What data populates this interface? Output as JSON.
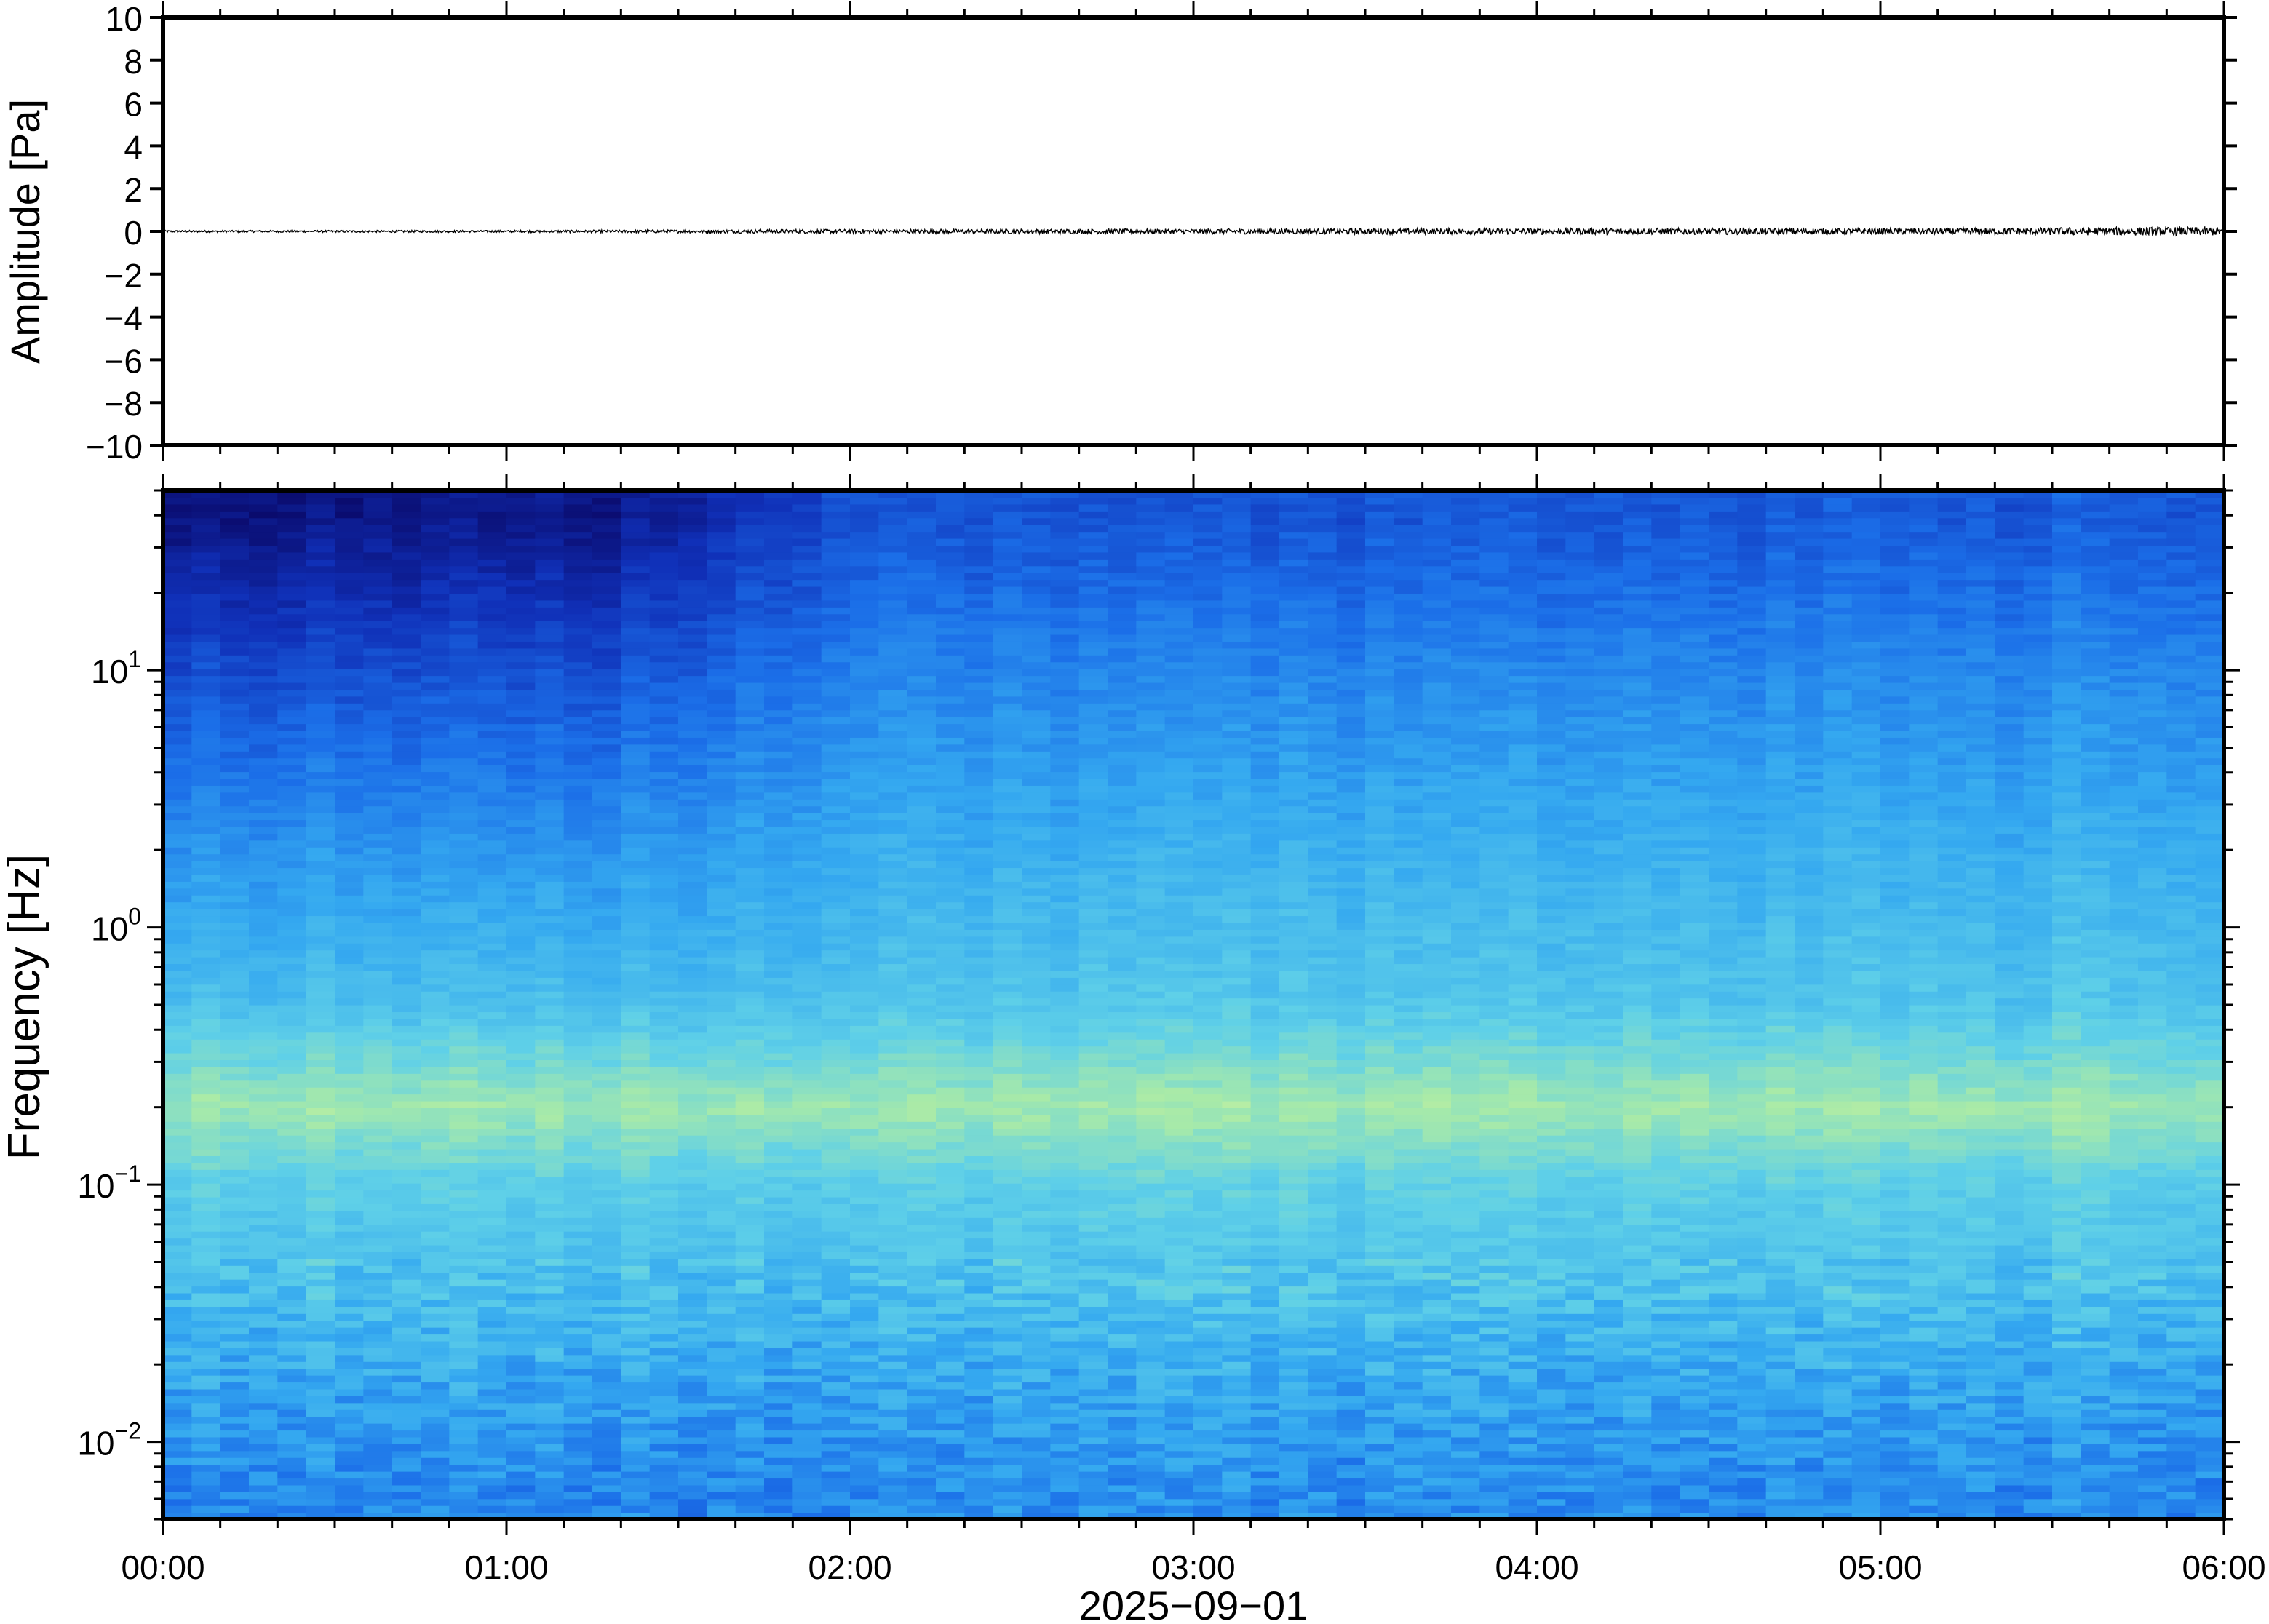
{
  "chart_data": [
    {
      "type": "line",
      "panel": "waveform",
      "ylabel": "Amplitude [Pa]",
      "ylim": [
        -10,
        10
      ],
      "yticks": [
        -10,
        -8,
        -6,
        -4,
        -2,
        0,
        2,
        4,
        6,
        8,
        10
      ],
      "ytick_labels": [
        "−10",
        "−8",
        "−6",
        "−4",
        "−2",
        "0",
        "2",
        "4",
        "6",
        "8",
        "10"
      ],
      "x_range": [
        "00:00",
        "06:00"
      ],
      "grid": false,
      "series_description": "Pressure trace near 0 Pa across the full interval; amplitude grows slightly toward 06:00",
      "envelope": [
        {
          "t": "00:00",
          "amp": 0.05
        },
        {
          "t": "01:00",
          "amp": 0.05
        },
        {
          "t": "02:00",
          "amp": 0.1
        },
        {
          "t": "03:00",
          "amp": 0.12
        },
        {
          "t": "04:00",
          "amp": 0.15
        },
        {
          "t": "05:00",
          "amp": 0.15
        },
        {
          "t": "05:50",
          "amp": 0.2
        },
        {
          "t": "06:00",
          "amp": 0.2
        }
      ],
      "color": "#000000"
    },
    {
      "type": "heatmap",
      "panel": "spectrogram",
      "ylabel": "Frequency [Hz]",
      "yscale": "log",
      "ylim": [
        0.005,
        50
      ],
      "yticks": [
        0.01,
        0.1,
        1,
        10
      ],
      "ytick_labels": [
        {
          "base": "10",
          "exp": "−2"
        },
        {
          "base": "10",
          "exp": "−1"
        },
        {
          "base": "10",
          "exp": "0"
        },
        {
          "base": "10",
          "exp": "1"
        }
      ],
      "xlabel": "2025−09−01",
      "x_range": [
        "00:00",
        "06:00"
      ],
      "xticks": [
        "00:00",
        "01:00",
        "02:00",
        "03:00",
        "04:00",
        "05:00",
        "06:00"
      ],
      "time_columns": 72,
      "grid": false,
      "colormap": [
        "#0a0a6b",
        "#1030b8",
        "#1b6ee8",
        "#34a8f0",
        "#5fd0e8",
        "#a8eaa8",
        "#e2f59a"
      ],
      "band_profile": [
        {
          "freq_hz": 40,
          "level": 0.05
        },
        {
          "freq_hz": 10,
          "level": 0.25
        },
        {
          "freq_hz": 2,
          "level": 0.45
        },
        {
          "freq_hz": 0.5,
          "level": 0.6
        },
        {
          "freq_hz": 0.2,
          "level": 0.82
        },
        {
          "freq_hz": 0.1,
          "level": 0.66
        },
        {
          "freq_hz": 0.04,
          "level": 0.6
        },
        {
          "freq_hz": 0.01,
          "level": 0.45
        },
        {
          "freq_hz": 0.006,
          "level": 0.42
        }
      ],
      "time_profile": [
        {
          "t": "00:00",
          "hf_level": 0.05
        },
        {
          "t": "01:20",
          "hf_level": 0.08
        },
        {
          "t": "02:00",
          "hf_level": 0.3
        },
        {
          "t": "03:00",
          "hf_level": 0.28
        },
        {
          "t": "04:00",
          "hf_level": 0.3
        },
        {
          "t": "06:00",
          "hf_level": 0.32
        }
      ]
    }
  ]
}
